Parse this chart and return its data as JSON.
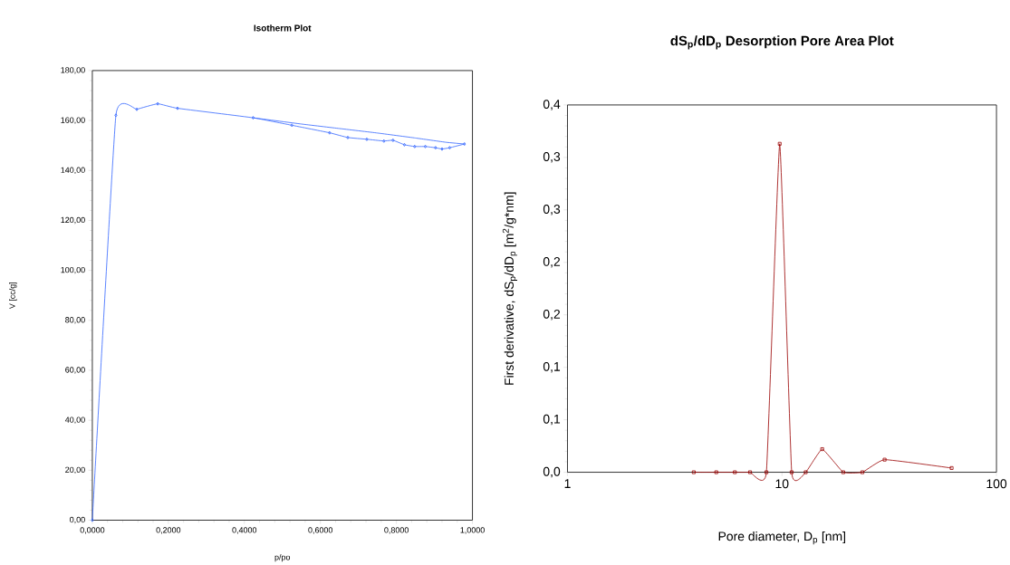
{
  "chart_data": [
    {
      "type": "line",
      "title": "Isotherm Plot",
      "xlabel": "p/po",
      "ylabel": "V [cc/g]",
      "xlim": [
        0,
        1
      ],
      "ylim": [
        0,
        180
      ],
      "xticks": [
        {
          "value": 0,
          "label": "0,0000"
        },
        {
          "value": 0.2,
          "label": "0,2000"
        },
        {
          "value": 0.4,
          "label": "0,4000"
        },
        {
          "value": 0.6,
          "label": "0,6000"
        },
        {
          "value": 0.8,
          "label": "0,8000"
        },
        {
          "value": 1,
          "label": "1,0000"
        }
      ],
      "yticks": [
        {
          "value": 0,
          "label": "0,00"
        },
        {
          "value": 20,
          "label": "20,00"
        },
        {
          "value": 40,
          "label": "40,00"
        },
        {
          "value": 60,
          "label": "60,00"
        },
        {
          "value": 80,
          "label": "80,00"
        },
        {
          "value": 100,
          "label": "100,00"
        },
        {
          "value": 120,
          "label": "120,00"
        },
        {
          "value": 140,
          "label": "140,00"
        },
        {
          "value": 160,
          "label": "160,00"
        },
        {
          "value": 180,
          "label": "180,00"
        }
      ],
      "series": [
        {
          "color": "#3366ff",
          "marker": "diamond",
          "x": [
            0,
            0.062,
            0.117,
            0.172,
            0.224,
            0.423,
            0.525,
            0.624,
            0.672,
            0.722,
            0.767,
            0.791,
            0.821,
            0.848,
            0.876,
            0.903,
            0.92,
            0.94,
            0.979
          ],
          "values": [
            0,
            162.1,
            164.5,
            166.7,
            164.9,
            161.1,
            158.1,
            155.1,
            153.2,
            152.5,
            151.8,
            152.1,
            150.3,
            149.6,
            149.6,
            149.1,
            148.6,
            149.1,
            150.6
          ]
        },
        {
          "color": "#3366ff",
          "marker": "none",
          "x": [
            0.979,
            0.93,
            0.85,
            0.75,
            0.65,
            0.55,
            0.423
          ],
          "values": [
            150.6,
            151.3,
            153.0,
            155.0,
            156.8,
            158.6,
            161.1
          ]
        }
      ]
    },
    {
      "type": "line",
      "title": "dS$_{p}$/dD$_{p}$ Desorption Pore Area Plot",
      "xlabel": "Pore diameter, D$_{p}$ [nm]",
      "ylabel": "First derivative, dS$_{p}$/dD$_{p}$ [m$^{2}$/g*nm]",
      "log": "x",
      "xlim": [
        1,
        100
      ],
      "ylim": [
        0,
        0.35
      ],
      "xticks": [
        1,
        10,
        100
      ],
      "yticks": [
        {
          "value": 0,
          "label": "0,0"
        },
        {
          "value": 0.05,
          "label": "0,1"
        },
        {
          "value": 0.1,
          "label": "0,1"
        },
        {
          "value": 0.15,
          "label": "0,2"
        },
        {
          "value": 0.2,
          "label": "0,2"
        },
        {
          "value": 0.25,
          "label": "0,3"
        },
        {
          "value": 0.3,
          "label": "0,3"
        },
        {
          "value": 0.35,
          "label": "0,4"
        }
      ],
      "series": [
        {
          "color": "#990000",
          "marker": "square",
          "x": [
            3.88,
            4.94,
            6.03,
            7.1,
            8.46,
            9.76,
            11.1,
            12.9,
            15.4,
            19.3,
            23.7,
            30.1,
            61.8
          ],
          "values": [
            0,
            0,
            0,
            0,
            0,
            0.313,
            0,
            0,
            0.022,
            0,
            0,
            0.012,
            0.004
          ]
        }
      ]
    }
  ]
}
